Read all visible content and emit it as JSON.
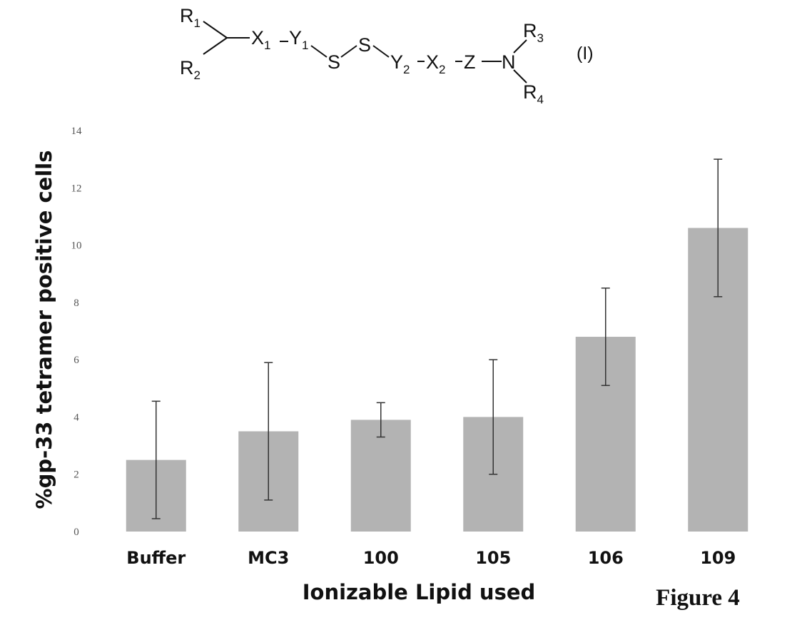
{
  "formula": {
    "r1": "R",
    "r1_sub": "1",
    "r2": "R",
    "r2_sub": "2",
    "x1": "X",
    "x1_sub": "1",
    "y1": "Y",
    "y1_sub": "1",
    "s_left": "S",
    "s_right": "S",
    "y2": "Y",
    "y2_sub": "2",
    "x2": "X",
    "x2_sub": "2",
    "z": "Z",
    "n": "N",
    "r3": "R",
    "r3_sub": "3",
    "r4": "R",
    "r4_sub": "4",
    "label": "(I)"
  },
  "figure_label": "Figure 4",
  "colors": {
    "bar": "#b3b3b3",
    "error_bar": "#333333",
    "text": "#111111"
  },
  "chart_data": {
    "type": "bar",
    "categories": [
      "Buffer",
      "MC3",
      "100",
      "105",
      "106",
      "109"
    ],
    "values": [
      2.5,
      3.5,
      3.9,
      4.0,
      6.8,
      10.6
    ],
    "error": [
      2.05,
      2.4,
      0.6,
      2.0,
      1.7,
      2.4
    ],
    "ylim": [
      0,
      14
    ],
    "yticks": [
      0,
      2,
      4,
      6,
      8,
      10,
      12,
      14
    ],
    "xlabel": "Ionizable Lipid used",
    "ylabel": "%gp-33 tetramer positive cells",
    "title": "",
    "grid": false
  }
}
